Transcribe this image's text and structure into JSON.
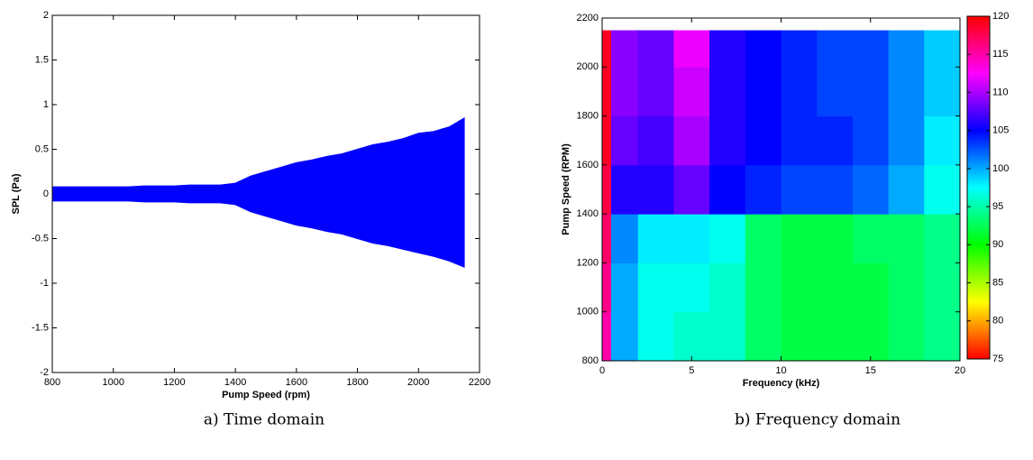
{
  "chart_data": [
    {
      "type": "band",
      "xlabel": "Pump Speed (rpm)",
      "ylabel": "SPL (Pa)",
      "caption": "a) Time domain",
      "color": "#0000ff",
      "x": [
        800,
        850,
        900,
        950,
        1000,
        1050,
        1100,
        1150,
        1200,
        1250,
        1300,
        1350,
        1400,
        1450,
        1500,
        1550,
        1600,
        1650,
        1700,
        1750,
        1800,
        1850,
        1900,
        1950,
        2000,
        2050,
        2100,
        2150
      ],
      "upper": [
        0.08,
        0.08,
        0.08,
        0.08,
        0.08,
        0.08,
        0.09,
        0.09,
        0.09,
        0.1,
        0.1,
        0.1,
        0.12,
        0.2,
        0.25,
        0.3,
        0.35,
        0.38,
        0.42,
        0.45,
        0.5,
        0.55,
        0.58,
        0.62,
        0.68,
        0.7,
        0.75,
        0.85
      ],
      "lower": [
        -0.08,
        -0.08,
        -0.08,
        -0.08,
        -0.08,
        -0.08,
        -0.09,
        -0.09,
        -0.09,
        -0.1,
        -0.1,
        -0.1,
        -0.12,
        -0.2,
        -0.25,
        -0.3,
        -0.35,
        -0.38,
        -0.42,
        -0.45,
        -0.5,
        -0.55,
        -0.58,
        -0.62,
        -0.66,
        -0.7,
        -0.75,
        -0.82
      ],
      "xlim": [
        800,
        2200
      ],
      "xticks": [
        800,
        1000,
        1200,
        1400,
        1600,
        1800,
        2000,
        2200
      ],
      "ylim": [
        -2,
        2
      ],
      "yticks": [
        -2,
        -1.5,
        -1,
        -0.5,
        0,
        0.5,
        1,
        1.5,
        2
      ]
    },
    {
      "type": "heatmap",
      "xlabel": "Frequency (kHz)",
      "ylabel": "Pump Speed (RPM)",
      "caption": "b) Frequency domain",
      "x_edges": [
        0,
        0.5,
        2,
        4,
        6,
        8,
        10,
        12,
        14,
        16,
        18,
        20
      ],
      "y_edges": [
        800,
        1000,
        1200,
        1400,
        1600,
        1800,
        2000,
        2150
      ],
      "z": [
        [
          115,
          100,
          97,
          96,
          96,
          93,
          92,
          92,
          92,
          93,
          94
        ],
        [
          116,
          100,
          97,
          97,
          96,
          93,
          92,
          92,
          92,
          93,
          94
        ],
        [
          117,
          101,
          98,
          98,
          97,
          93,
          92,
          92,
          93,
          93,
          94
        ],
        [
          118,
          106,
          106,
          108,
          105,
          104,
          103,
          103,
          102,
          100,
          97
        ],
        [
          119,
          108,
          107,
          110,
          106,
          105,
          104,
          104,
          103,
          101,
          98
        ],
        [
          119,
          109,
          108,
          111,
          106,
          105,
          104,
          103,
          103,
          101,
          99
        ],
        [
          119,
          109,
          108,
          112,
          106,
          105,
          104,
          103,
          103,
          101,
          99
        ]
      ],
      "colormap": [
        "#ff0000",
        "#ffff00",
        "#00ff00",
        "#00ffff",
        "#0000ff",
        "#ff00ff",
        "#ff0000"
      ],
      "clim": [
        75,
        120
      ],
      "cticks": [
        75,
        80,
        85,
        90,
        95,
        100,
        105,
        110,
        115,
        120
      ],
      "xlim": [
        0,
        20
      ],
      "xticks": [
        0,
        5,
        10,
        15,
        20
      ],
      "ylim": [
        800,
        2200
      ],
      "yticks": [
        800,
        1000,
        1200,
        1400,
        1600,
        1800,
        2000,
        2200
      ]
    }
  ]
}
